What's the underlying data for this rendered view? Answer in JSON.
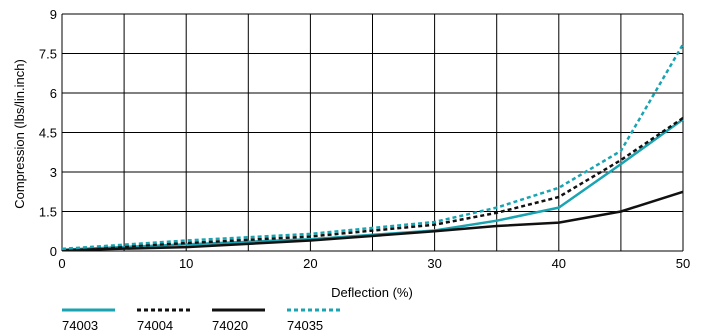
{
  "chart_data": {
    "type": "line",
    "xlabel": "Deflection (%)",
    "ylabel": "Compression (lbs/lin.inch)",
    "xlim": [
      0,
      50
    ],
    "ylim": [
      0,
      9
    ],
    "x_ticks": [
      "0",
      "10",
      "20",
      "30",
      "40",
      "50"
    ],
    "y_ticks": [
      "0",
      "1.5",
      "3",
      "4.5",
      "6",
      "7.5",
      "9"
    ],
    "x_grid": [
      0,
      5,
      10,
      15,
      20,
      25,
      30,
      35,
      40,
      45,
      50
    ],
    "y_grid": [
      0,
      1.5,
      3,
      4.5,
      6,
      7.5,
      9
    ],
    "grid": true,
    "legend_position": "bottom-left",
    "series": [
      {
        "name": "74003",
        "color": "#1aa3b0",
        "dash": "solid",
        "points": [
          [
            0,
            0.05
          ],
          [
            10,
            0.25
          ],
          [
            20,
            0.45
          ],
          [
            30,
            0.78
          ],
          [
            35,
            1.15
          ],
          [
            40,
            1.65
          ],
          [
            45,
            3.3
          ],
          [
            50,
            5.0
          ]
        ]
      },
      {
        "name": "74004",
        "color": "#111111",
        "dash": "dotted",
        "points": [
          [
            0,
            0.05
          ],
          [
            10,
            0.3
          ],
          [
            20,
            0.55
          ],
          [
            30,
            1.0
          ],
          [
            35,
            1.45
          ],
          [
            40,
            2.05
          ],
          [
            45,
            3.45
          ],
          [
            50,
            5.05
          ]
        ]
      },
      {
        "name": "74020",
        "color": "#111111",
        "dash": "solid",
        "points": [
          [
            0,
            0.03
          ],
          [
            10,
            0.15
          ],
          [
            20,
            0.4
          ],
          [
            30,
            0.75
          ],
          [
            35,
            0.95
          ],
          [
            40,
            1.08
          ],
          [
            45,
            1.5
          ],
          [
            50,
            2.25
          ]
        ]
      },
      {
        "name": "74035",
        "color": "#1aa3b0",
        "dash": "dotted",
        "points": [
          [
            0,
            0.08
          ],
          [
            10,
            0.4
          ],
          [
            20,
            0.65
          ],
          [
            30,
            1.1
          ],
          [
            35,
            1.65
          ],
          [
            40,
            2.4
          ],
          [
            45,
            3.8
          ],
          [
            50,
            7.85
          ]
        ]
      }
    ]
  }
}
